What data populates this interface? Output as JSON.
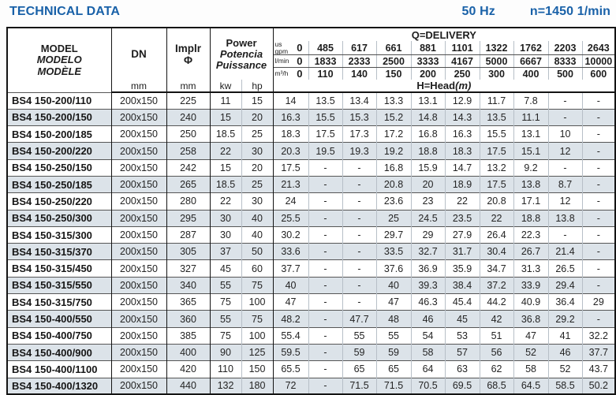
{
  "title": "TECHNICAL DATA",
  "frequency": "50 Hz",
  "speed": "n=1450 1/min",
  "table": {
    "headers": {
      "model_lines": [
        "MODEL",
        "MODELO",
        "MODÈLE"
      ],
      "dn": "DN",
      "implr": "Implr",
      "implr_symbol": "Φ",
      "power_lines": [
        "Power",
        "Potencia",
        "Puissance"
      ],
      "unit_mm": "mm",
      "unit_kw": "kw",
      "unit_hp": "hp",
      "delivery_title": "Q=DELIVERY",
      "head_title": "H=Head",
      "head_unit": "(m)",
      "flow_rows": [
        {
          "unit_lines": [
            "us",
            "gpm"
          ],
          "zero": "0",
          "values": [
            "485",
            "617",
            "661",
            "881",
            "1101",
            "1322",
            "1762",
            "2203",
            "2643"
          ]
        },
        {
          "unit_lines": [
            "l/min"
          ],
          "zero": "0",
          "values": [
            "1833",
            "2333",
            "2500",
            "3333",
            "4167",
            "5000",
            "6667",
            "8333",
            "10000"
          ]
        },
        {
          "unit_lines": [
            "m³/h"
          ],
          "zero": "0",
          "values": [
            "110",
            "140",
            "150",
            "200",
            "250",
            "300",
            "400",
            "500",
            "600"
          ]
        }
      ]
    },
    "rows": [
      {
        "model": "BS4 150-200/110",
        "dn": "200x150",
        "implr": "225",
        "kw": "11",
        "hp": "15",
        "head": [
          "14",
          "13.5",
          "13.4",
          "13.3",
          "13.1",
          "12.9",
          "11.7",
          "7.8",
          "-",
          "-"
        ]
      },
      {
        "model": "BS4 150-200/150",
        "dn": "200x150",
        "implr": "240",
        "kw": "15",
        "hp": "20",
        "head": [
          "16.3",
          "15.5",
          "15.3",
          "15.2",
          "14.8",
          "14.3",
          "13.5",
          "11.1",
          "-",
          "-"
        ]
      },
      {
        "model": "BS4 150-200/185",
        "dn": "200x150",
        "implr": "250",
        "kw": "18.5",
        "hp": "25",
        "head": [
          "18.3",
          "17.5",
          "17.3",
          "17.2",
          "16.8",
          "16.3",
          "15.5",
          "13.1",
          "10",
          "-"
        ]
      },
      {
        "model": "BS4 150-200/220",
        "dn": "200x150",
        "implr": "258",
        "kw": "22",
        "hp": "30",
        "head": [
          "20.3",
          "19.5",
          "19.3",
          "19.2",
          "18.8",
          "18.3",
          "17.5",
          "15.1",
          "12",
          "-"
        ]
      },
      {
        "model": "BS4 150-250/150",
        "dn": "200x150",
        "implr": "242",
        "kw": "15",
        "hp": "20",
        "head": [
          "17.5",
          "-",
          "-",
          "16.8",
          "15.9",
          "14.7",
          "13.2",
          "9.2",
          "-",
          "-"
        ]
      },
      {
        "model": "BS4 150-250/185",
        "dn": "200x150",
        "implr": "265",
        "kw": "18.5",
        "hp": "25",
        "head": [
          "21.3",
          "-",
          "-",
          "20.8",
          "20",
          "18.9",
          "17.5",
          "13.8",
          "8.7",
          "-"
        ]
      },
      {
        "model": "BS4 150-250/220",
        "dn": "200x150",
        "implr": "280",
        "kw": "22",
        "hp": "30",
        "head": [
          "24",
          "-",
          "-",
          "23.6",
          "23",
          "22",
          "20.8",
          "17.1",
          "12",
          "-"
        ]
      },
      {
        "model": "BS4 150-250/300",
        "dn": "200x150",
        "implr": "295",
        "kw": "30",
        "hp": "40",
        "head": [
          "25.5",
          "-",
          "-",
          "25",
          "24.5",
          "23.5",
          "22",
          "18.8",
          "13.8",
          "-"
        ]
      },
      {
        "model": "BS4 150-315/300",
        "dn": "200x150",
        "implr": "287",
        "kw": "30",
        "hp": "40",
        "head": [
          "30.2",
          "-",
          "-",
          "29.7",
          "29",
          "27.9",
          "26.4",
          "22.3",
          "-",
          "-"
        ]
      },
      {
        "model": "BS4 150-315/370",
        "dn": "200x150",
        "implr": "305",
        "kw": "37",
        "hp": "50",
        "head": [
          "33.6",
          "-",
          "-",
          "33.5",
          "32.7",
          "31.7",
          "30.4",
          "26.7",
          "21.4",
          "-"
        ]
      },
      {
        "model": "BS4 150-315/450",
        "dn": "200x150",
        "implr": "327",
        "kw": "45",
        "hp": "60",
        "head": [
          "37.7",
          "-",
          "-",
          "37.6",
          "36.9",
          "35.9",
          "34.7",
          "31.3",
          "26.5",
          "-"
        ]
      },
      {
        "model": "BS4 150-315/550",
        "dn": "200x150",
        "implr": "340",
        "kw": "55",
        "hp": "75",
        "head": [
          "40",
          "-",
          "-",
          "40",
          "39.3",
          "38.4",
          "37.2",
          "33.9",
          "29.4",
          "-"
        ]
      },
      {
        "model": "BS4 150-315/750",
        "dn": "200x150",
        "implr": "365",
        "kw": "75",
        "hp": "100",
        "head": [
          "47",
          "-",
          "-",
          "47",
          "46.3",
          "45.4",
          "44.2",
          "40.9",
          "36.4",
          "29"
        ]
      },
      {
        "model": "BS4 150-400/550",
        "dn": "200x150",
        "implr": "360",
        "kw": "55",
        "hp": "75",
        "head": [
          "48.2",
          "-",
          "47.7",
          "48",
          "46",
          "45",
          "42",
          "36.8",
          "29.2",
          "-"
        ]
      },
      {
        "model": "BS4 150-400/750",
        "dn": "200x150",
        "implr": "385",
        "kw": "75",
        "hp": "100",
        "head": [
          "55.4",
          "-",
          "55",
          "55",
          "54",
          "53",
          "51",
          "47",
          "41",
          "32.2"
        ]
      },
      {
        "model": "BS4 150-400/900",
        "dn": "200x150",
        "implr": "400",
        "kw": "90",
        "hp": "125",
        "head": [
          "59.5",
          "-",
          "59",
          "59",
          "58",
          "57",
          "56",
          "52",
          "46",
          "37.7"
        ]
      },
      {
        "model": "BS4 150-400/1100",
        "dn": "200x150",
        "implr": "420",
        "kw": "110",
        "hp": "150",
        "head": [
          "65.5",
          "-",
          "65",
          "65",
          "64",
          "63",
          "62",
          "58",
          "52",
          "43.7"
        ]
      },
      {
        "model": "BS4 150-400/1320",
        "dn": "200x150",
        "implr": "440",
        "kw": "132",
        "hp": "180",
        "head": [
          "72",
          "-",
          "71.5",
          "71.5",
          "70.5",
          "69.5",
          "68.5",
          "64.5",
          "58.5",
          "50.2"
        ]
      }
    ]
  }
}
